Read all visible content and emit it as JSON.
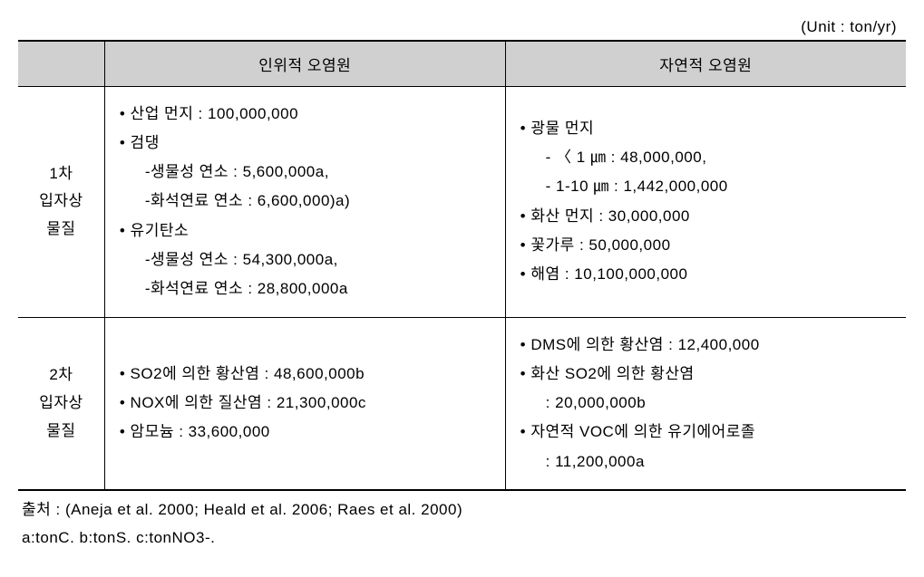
{
  "unit_label": "(Unit : ton/yr)",
  "columns": {
    "blank": "",
    "anthropogenic": "인위적 오염원",
    "natural": "자연적 오염원"
  },
  "rows": [
    {
      "header": "1차\n입자상\n물질",
      "anthropogenic_lines": [
        {
          "type": "bullet",
          "text": "• 산업 먼지 : 100,000,000"
        },
        {
          "type": "bullet",
          "text": "• 검댕"
        },
        {
          "type": "sub",
          "text": "-생물성 연소 : 5,600,000a,"
        },
        {
          "type": "sub",
          "text": "-화석연료 연소 : 6,600,000)a)"
        },
        {
          "type": "bullet",
          "text": "• 유기탄소"
        },
        {
          "type": "sub",
          "text": "-생물성 연소 : 54,300,000a,"
        },
        {
          "type": "sub",
          "text": "-화석연료  연소 : 28,800,000a"
        }
      ],
      "natural_lines": [
        {
          "type": "bullet",
          "text": "• 광물 먼지"
        },
        {
          "type": "sub",
          "text": "- 〈 1 ㎛ : 48,000,000,"
        },
        {
          "type": "sub",
          "text": "- 1-10 ㎛ : 1,442,000,000"
        },
        {
          "type": "bullet",
          "text": "• 화산 먼지 : 30,000,000"
        },
        {
          "type": "bullet",
          "text": "• 꽃가루 : 50,000,000"
        },
        {
          "type": "bullet",
          "text": "• 해염 : 10,100,000,000"
        }
      ]
    },
    {
      "header": "2차\n입자상\n물질",
      "anthropogenic_lines": [
        {
          "type": "bullet",
          "text": "• SO2에 의한 황산염 : 48,600,000b"
        },
        {
          "type": "bullet",
          "text": "• NOX에 의한 질산염 : 21,300,000c"
        },
        {
          "type": "bullet",
          "text": "• 암모늄 : 33,600,000"
        }
      ],
      "natural_lines": [
        {
          "type": "bullet",
          "text": "• DMS에 의한 황산염 : 12,400,000"
        },
        {
          "type": "bullet",
          "text": "• 화산 SO2에 의한 황산염"
        },
        {
          "type": "sub",
          "text": ": 20,000,000b"
        },
        {
          "type": "bullet",
          "text": "• 자연적 VOC에 의한 유기에어로졸"
        },
        {
          "type": "sub",
          "text": ": 11,200,000a"
        }
      ]
    }
  ],
  "footnotes": {
    "source": "출처 : (Aneja et al. 2000; Heald et al. 2006; Raes et al. 2000)",
    "units": "a:tonC.  b:tonS. c:tonNO3-."
  },
  "style": {
    "background_color": "#ffffff",
    "header_bg": "#d0d0d0",
    "border_color": "#000000",
    "text_color": "#000000",
    "body_font_size": 17,
    "line_height": 1.9,
    "top_border_width": 2,
    "bottom_border_width": 2,
    "inner_border_width": 1
  }
}
